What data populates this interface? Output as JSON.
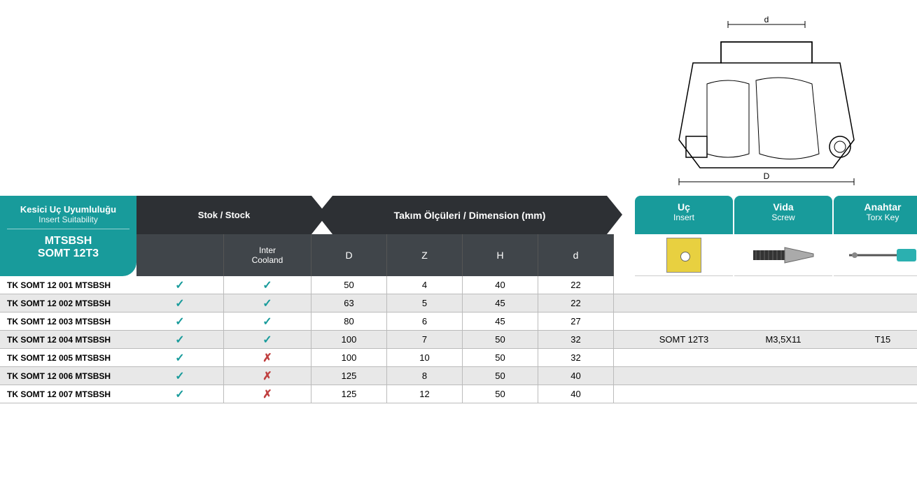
{
  "colors": {
    "teal": "#189b9b",
    "dark": "#2d3034",
    "darker": "#40454a",
    "row_alt": "#e8e8e8",
    "check": "#189b9b",
    "cross": "#c04040",
    "insert_yellow": "#e8d040"
  },
  "badge": {
    "line1": "Kesici Uç Uyumluluğu",
    "line2": "Insert Suitability",
    "code1": "MTSBSH",
    "code2": "SOMT 12T3"
  },
  "headers": {
    "stock_label": "Stok / Stock",
    "dim_label": "Takım Ölçüleri / Dimension (mm)",
    "insert_t": "Uç",
    "insert_s": "Insert",
    "screw_t": "Vida",
    "screw_s": "Screw",
    "key_t": "Anahtar",
    "key_s": "Torx Key"
  },
  "subheaders": {
    "stock1": "",
    "stock2a": "Inter",
    "stock2b": "Cooland",
    "dims": [
      "D",
      "Z",
      "H",
      "d"
    ]
  },
  "rows": [
    {
      "name": "TK SOMT 12 001 MTSBSH",
      "s1": "✓",
      "s2": "✓",
      "D": "50",
      "Z": "4",
      "H": "40",
      "d": "22",
      "alt": false
    },
    {
      "name": "TK SOMT 12 002 MTSBSH",
      "s1": "✓",
      "s2": "✓",
      "D": "63",
      "Z": "5",
      "H": "45",
      "d": "22",
      "alt": true
    },
    {
      "name": "TK SOMT 12 003 MTSBSH",
      "s1": "✓",
      "s2": "✓",
      "D": "80",
      "Z": "6",
      "H": "45",
      "d": "27",
      "alt": false
    },
    {
      "name": "TK SOMT 12 004 MTSBSH",
      "s1": "✓",
      "s2": "✓",
      "D": "100",
      "Z": "7",
      "H": "50",
      "d": "32",
      "alt": true
    },
    {
      "name": "TK SOMT 12 005 MTSBSH",
      "s1": "✓",
      "s2": "✗",
      "D": "100",
      "Z": "10",
      "H": "50",
      "d": "32",
      "alt": false
    },
    {
      "name": "TK SOMT 12 006 MTSBSH",
      "s1": "✓",
      "s2": "✗",
      "D": "125",
      "Z": "8",
      "H": "50",
      "d": "40",
      "alt": true
    },
    {
      "name": "TK SOMT 12 007 MTSBSH",
      "s1": "✓",
      "s2": "✗",
      "D": "125",
      "Z": "12",
      "H": "50",
      "d": "40",
      "alt": false
    }
  ],
  "side": {
    "insert": "SOMT 12T3",
    "screw": "M3,5X11",
    "key": "T15"
  },
  "diagram": {
    "label_d": "d",
    "label_D": "D"
  }
}
